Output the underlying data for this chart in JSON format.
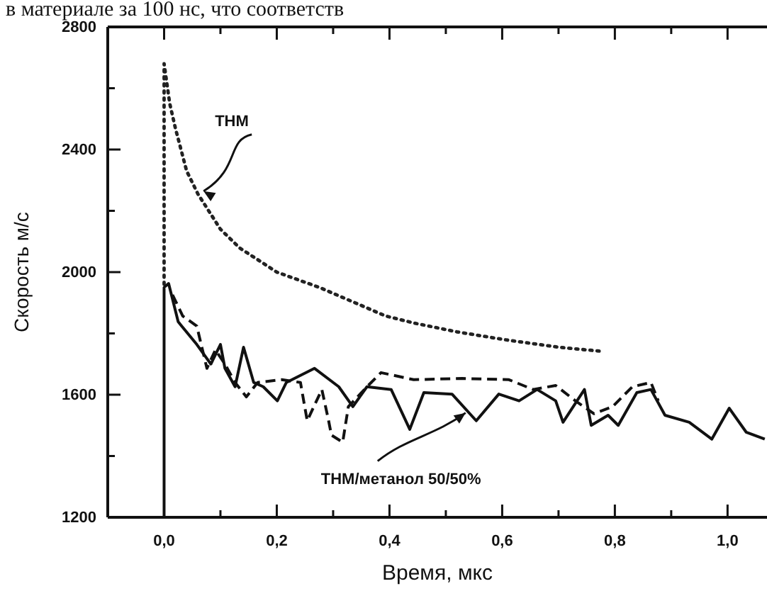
{
  "chart_data": {
    "type": "line",
    "xlabel": "Время, мкс",
    "ylabel": "Скорость м/с",
    "xlim": [
      -0.1,
      1.07
    ],
    "ylim": [
      1200,
      2800
    ],
    "xticks": [
      {
        "value": 0,
        "label": "0,0"
      },
      {
        "value": 0.1,
        "label": null
      },
      {
        "value": 0.2,
        "label": "0,2"
      },
      {
        "value": 0.3,
        "label": null
      },
      {
        "value": 0.4,
        "label": "0,4"
      },
      {
        "value": 0.5,
        "label": null
      },
      {
        "value": 0.6,
        "label": "0,6"
      },
      {
        "value": 0.7,
        "label": null
      },
      {
        "value": 0.8,
        "label": "0,8"
      },
      {
        "value": 0.9,
        "label": null
      },
      {
        "value": 1.0,
        "label": "1,0"
      }
    ],
    "yticks": [
      1200,
      {
        "value": 1400,
        "label": null
      },
      1600,
      {
        "value": 1800,
        "label": null
      },
      2000,
      {
        "value": 2200,
        "label": null
      },
      2400,
      {
        "value": 2600,
        "label": null
      },
      2800
    ],
    "grid": false,
    "marker": "none",
    "series": [
      {
        "color": "#222222",
        "line_style": "dotted",
        "x": [
          0,
          0,
          0.01,
          0.02,
          0.04,
          0.06,
          0.1,
          0.134,
          0.2,
          0.277,
          0.393,
          0.443,
          0.52,
          0.61,
          0.7,
          0.78
        ],
        "values": [
          1960,
          2680,
          2550,
          2470,
          2330,
          2255,
          2140,
          2079,
          2000,
          1949,
          1857,
          1834,
          1805,
          1778,
          1755,
          1741
        ]
      },
      {
        "color": "#111111",
        "line_style": "solid",
        "x": [
          0,
          0,
          0.008,
          0.025,
          0.058,
          0.083,
          0.1,
          0.108,
          0.126,
          0.141,
          0.159,
          0.176,
          0.201,
          0.217,
          0.267,
          0.31,
          0.335,
          0.36,
          0.403,
          0.436,
          0.461,
          0.511,
          0.554,
          0.594,
          0.63,
          0.662,
          0.695,
          0.708,
          0.746,
          0.758,
          0.788,
          0.806,
          0.839,
          0.864,
          0.889,
          0.932,
          0.972,
          1.003,
          1.033,
          1.066
        ],
        "values": [
          1200,
          1950,
          1963,
          1838,
          1764,
          1700,
          1764,
          1686,
          1626,
          1755,
          1640,
          1626,
          1580,
          1640,
          1686,
          1626,
          1561,
          1626,
          1617,
          1487,
          1607,
          1602,
          1515,
          1602,
          1580,
          1617,
          1580,
          1510,
          1617,
          1500,
          1533,
          1500,
          1607,
          1617,
          1533,
          1510,
          1455,
          1556,
          1478,
          1455
        ]
      },
      {
        "color": "#111111",
        "line_style": "dashed",
        "x": [
          0.015,
          0.033,
          0.058,
          0.076,
          0.091,
          0.108,
          0.126,
          0.146,
          0.166,
          0.209,
          0.242,
          0.254,
          0.28,
          0.292,
          0.297,
          0.317,
          0.327,
          0.36,
          0.385,
          0.443,
          0.529,
          0.612,
          0.655,
          0.695,
          0.73,
          0.763,
          0.796,
          0.831,
          0.864,
          0.877
        ],
        "values": [
          1926,
          1857,
          1824,
          1686,
          1746,
          1700,
          1640,
          1593,
          1640,
          1649,
          1640,
          1515,
          1617,
          1515,
          1468,
          1445,
          1561,
          1626,
          1672,
          1649,
          1653,
          1649,
          1617,
          1630,
          1580,
          1538,
          1561,
          1626,
          1640,
          1580
        ]
      }
    ],
    "annotations": [
      "в материале за 100 нс, что соответств",
      {
        "text": "THM",
        "x": 0.06,
        "y": 2255
      },
      {
        "text": "THM/метанол 50/50%",
        "x": 0.53,
        "y": 1550
      }
    ]
  }
}
